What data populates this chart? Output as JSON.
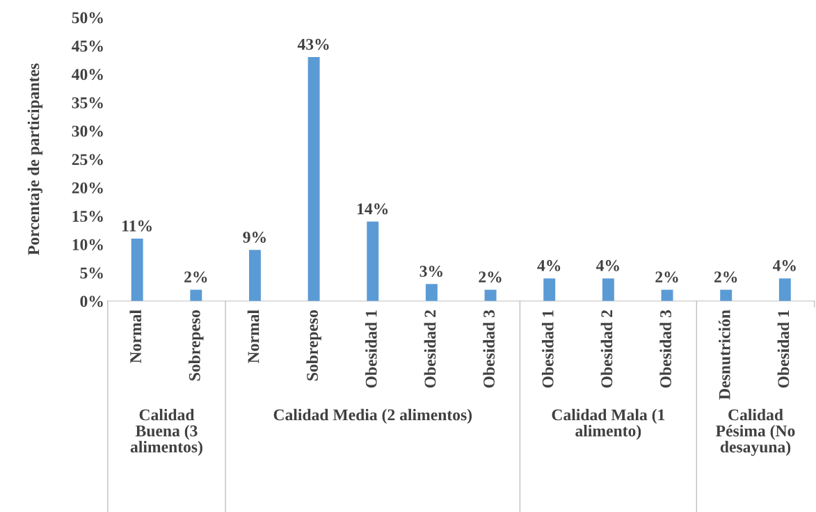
{
  "chart_data": {
    "type": "bar",
    "ylabel": "Porcentaje de participantes",
    "categories": [
      "Normal",
      "Sobrepeso",
      "Normal",
      "Sobrepeso",
      "Obesidad 1",
      "Obesidad 2",
      "Obesidad 3",
      "Obesidad 1",
      "Obesidad 2",
      "Obesidad 3",
      "Desnutrición",
      "Obesidad 1"
    ],
    "values": [
      11,
      2,
      9,
      43,
      14,
      3,
      2,
      4,
      4,
      2,
      2,
      4
    ],
    "value_labels": [
      "11%",
      "2%",
      "9%",
      "43%",
      "14%",
      "3%",
      "2%",
      "4%",
      "4%",
      "2%",
      "2%",
      "4%"
    ],
    "color": "#5b9bd5",
    "ylim": [
      0,
      50
    ],
    "yticks": [
      {
        "value": 0,
        "label": "0%"
      },
      {
        "value": 5,
        "label": "5%"
      },
      {
        "value": 10,
        "label": "10%"
      },
      {
        "value": 15,
        "label": "15%"
      },
      {
        "value": 20,
        "label": "20%"
      },
      {
        "value": 25,
        "label": "25%"
      },
      {
        "value": 30,
        "label": "30%"
      },
      {
        "value": 35,
        "label": "35%"
      },
      {
        "value": 40,
        "label": "40%"
      },
      {
        "value": 45,
        "label": "45%"
      },
      {
        "value": 50,
        "label": "50%"
      }
    ],
    "annotations": [
      "Calidad\nBuena (3\nalimentos)",
      "Calidad Media (2 alimentos)",
      "Calidad Mala (1\nalimento)",
      "Calidad\nPésima (No\ndesayuna)"
    ],
    "grid": false,
    "legend": false
  }
}
